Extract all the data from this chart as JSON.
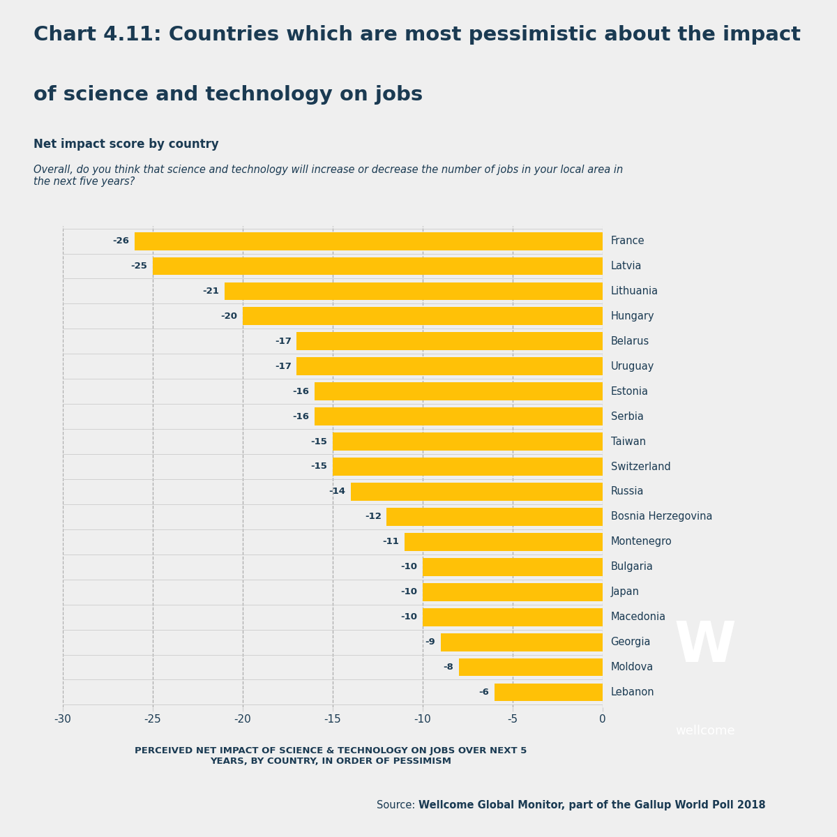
{
  "title_line1": "Chart 4.11: Countries which are most pessimistic about the impact",
  "title_line2": "of science and technology on jobs",
  "subtitle": "Net impact score by country",
  "question": "Overall, do you think that science and technology will increase or decrease the number of jobs in your local area in\nthe next five years?",
  "xlabel": "PERCEIVED NET IMPACT OF SCIENCE & TECHNOLOGY ON JOBS OVER NEXT 5\nYEARS, BY COUNTRY, IN ORDER OF PESSIMISM",
  "source_plain": "Source: ",
  "source_bold": "Wellcome Global Monitor, part of the Gallup World Poll 2018",
  "countries": [
    "France",
    "Latvia",
    "Lithuania",
    "Hungary",
    "Belarus",
    "Uruguay",
    "Estonia",
    "Serbia",
    "Taiwan",
    "Switzerland",
    "Russia",
    "Bosnia Herzegovina",
    "Montenegro",
    "Bulgaria",
    "Japan",
    "Macedonia",
    "Georgia",
    "Moldova",
    "Lebanon"
  ],
  "values": [
    -26,
    -25,
    -21,
    -20,
    -17,
    -17,
    -16,
    -16,
    -15,
    -15,
    -14,
    -12,
    -11,
    -10,
    -10,
    -10,
    -9,
    -8,
    -6
  ],
  "bar_color": "#FFC107",
  "background_color": "#EFEFEF",
  "title_color": "#1a3a52",
  "label_color": "#1a3a52",
  "axis_label_color": "#1a3a52",
  "xlabel_color": "#1a3a52",
  "dashed_line_color": "#aaaaaa",
  "grid_color": "#cccccc",
  "xlim": [
    -30,
    0
  ],
  "xticks": [
    -30,
    -25,
    -20,
    -15,
    -10,
    -5,
    0
  ],
  "top_bar_color": "#1a3a52",
  "wellcome_bg": "#1a3a52"
}
